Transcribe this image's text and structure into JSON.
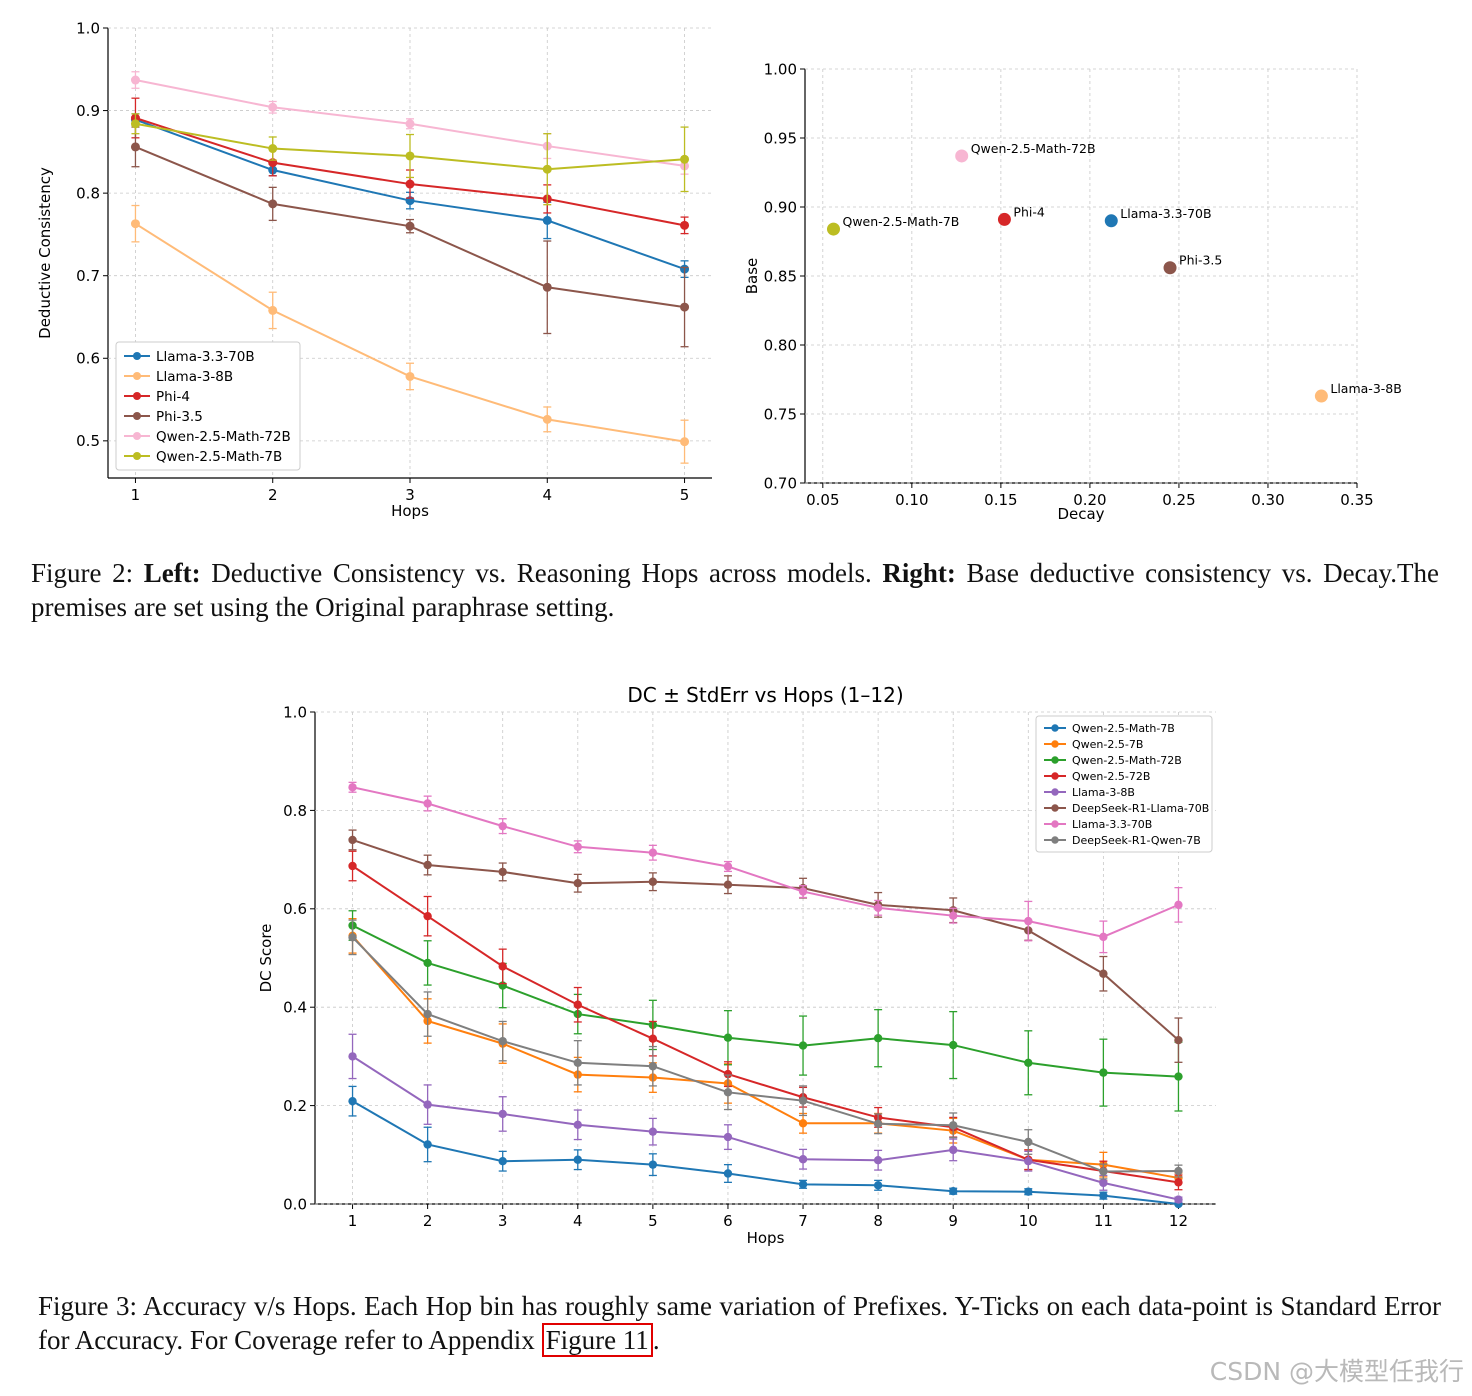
{
  "captions": {
    "fig2": {
      "prefix": "Figure 2: ",
      "left_label": "Left:",
      "left_text": " Deductive Consistency vs. Reasoning Hops across models. ",
      "right_label": "Right:",
      "right_text": " Base deductive consistency vs. Decay.The premises are set using the Original paraphrase setting."
    },
    "fig3": {
      "text": "Figure 3: Accuracy v/s Hops. Each Hop bin has roughly same variation of Prefixes. Y-Ticks on each data-point is Standard Error for Accuracy. For Coverage refer to Appendix ",
      "link": "Figure 11",
      "end": "."
    }
  },
  "watermark": "CSDN @大模型任我行",
  "chart_data": [
    {
      "type": "line",
      "title": "",
      "xlabel": "Hops",
      "ylabel": "Deductive Consistency",
      "x": [
        1,
        2,
        3,
        4,
        5
      ],
      "xlim": [
        0.8,
        5.2
      ],
      "ylim": [
        0.455,
        1.0
      ],
      "xticks": [
        "1",
        "2",
        "3",
        "4",
        "5"
      ],
      "yticks": [
        0.5,
        0.6,
        0.7,
        0.8,
        0.9,
        1.0
      ],
      "ytick_labels": [
        "0.5",
        "0.6",
        "0.7",
        "0.8",
        "0.9",
        "1.0"
      ],
      "grid": true,
      "legend": "bottom-left",
      "series": [
        {
          "name": "Llama-3.3-70B",
          "color": "#1f77b4",
          "values": [
            0.889,
            0.828,
            0.791,
            0.767,
            0.708
          ],
          "err": [
            0.007,
            0.007,
            0.01,
            0.022,
            0.01
          ]
        },
        {
          "name": "Llama-3-8B",
          "color": "#ffbb78",
          "values": [
            0.763,
            0.658,
            0.578,
            0.526,
            0.499
          ],
          "err": [
            0.022,
            0.022,
            0.016,
            0.015,
            0.026
          ]
        },
        {
          "name": "Phi-4",
          "color": "#d62728",
          "values": [
            0.891,
            0.837,
            0.811,
            0.793,
            0.761
          ],
          "err": [
            0.024,
            0.016,
            0.017,
            0.017,
            0.01
          ]
        },
        {
          "name": "Phi-3.5",
          "color": "#8c564b",
          "values": [
            0.856,
            0.787,
            0.76,
            0.686,
            0.662
          ],
          "err": [
            0.024,
            0.02,
            0.008,
            0.056,
            0.048
          ]
        },
        {
          "name": "Qwen-2.5-Math-72B",
          "color": "#f7b6d2",
          "values": [
            0.937,
            0.904,
            0.884,
            0.857,
            0.833
          ],
          "err": [
            0.01,
            0.007,
            0.006,
            0.015,
            0.01
          ]
        },
        {
          "name": "Qwen-2.5-Math-7B",
          "color": "#bcbd22",
          "values": [
            0.884,
            0.854,
            0.845,
            0.829,
            0.841
          ],
          "err": [
            0.012,
            0.014,
            0.026,
            0.043,
            0.039
          ]
        }
      ]
    },
    {
      "type": "scatter",
      "title": "",
      "xlabel": "Decay",
      "ylabel": "Base",
      "xlim": [
        0.04,
        0.35
      ],
      "ylim": [
        0.7,
        1.0
      ],
      "xticks": [
        0.05,
        0.1,
        0.15,
        0.2,
        0.25,
        0.3,
        0.35
      ],
      "xtick_labels": [
        "0.05",
        "0.10",
        "0.15",
        "0.20",
        "0.25",
        "0.30",
        "0.35"
      ],
      "yticks": [
        0.7,
        0.75,
        0.8,
        0.85,
        0.9,
        0.95,
        1.0
      ],
      "ytick_labels": [
        "0.70",
        "0.75",
        "0.80",
        "0.85",
        "0.90",
        "0.95",
        "1.00"
      ],
      "grid": true,
      "points": [
        {
          "label": "Qwen-2.5-Math-72B",
          "x": 0.128,
          "y": 0.937,
          "color": "#f7b6d2"
        },
        {
          "label": "Qwen-2.5-Math-7B",
          "x": 0.056,
          "y": 0.884,
          "color": "#bcbd22"
        },
        {
          "label": "Phi-4",
          "x": 0.152,
          "y": 0.891,
          "color": "#d62728"
        },
        {
          "label": "Llama-3.3-70B",
          "x": 0.212,
          "y": 0.89,
          "color": "#1f77b4"
        },
        {
          "label": "Phi-3.5",
          "x": 0.245,
          "y": 0.856,
          "color": "#8c564b"
        },
        {
          "label": "Llama-3-8B",
          "x": 0.33,
          "y": 0.763,
          "color": "#ffbb78"
        }
      ]
    },
    {
      "type": "line",
      "title": "DC ± StdErr vs Hops (1–12)",
      "xlabel": "Hops",
      "ylabel": "DC Score",
      "x": [
        1,
        2,
        3,
        4,
        5,
        6,
        7,
        8,
        9,
        10,
        11,
        12
      ],
      "xlim": [
        0.5,
        12.5
      ],
      "ylim": [
        0.0,
        1.0
      ],
      "xticks": [
        "1",
        "2",
        "3",
        "4",
        "5",
        "6",
        "7",
        "8",
        "9",
        "10",
        "11",
        "12"
      ],
      "yticks": [
        0.0,
        0.2,
        0.4,
        0.6,
        0.8,
        1.0
      ],
      "ytick_labels": [
        "0.0",
        "0.2",
        "0.4",
        "0.6",
        "0.8",
        "1.0"
      ],
      "grid": true,
      "legend": "top-right",
      "series": [
        {
          "name": "Qwen-2.5-Math-7B",
          "color": "#1f77b4",
          "values": [
            0.209,
            0.121,
            0.087,
            0.09,
            0.08,
            0.062,
            0.04,
            0.038,
            0.026,
            0.025,
            0.017,
            0.0
          ],
          "err": [
            0.03,
            0.035,
            0.02,
            0.02,
            0.022,
            0.018,
            0.008,
            0.01,
            0.006,
            0.006,
            0.007,
            0.002
          ]
        },
        {
          "name": "Qwen-2.5-7B",
          "color": "#ff7f0e",
          "values": [
            0.545,
            0.372,
            0.326,
            0.263,
            0.257,
            0.245,
            0.164,
            0.164,
            0.149,
            0.09,
            0.08,
            0.053
          ],
          "err": [
            0.035,
            0.045,
            0.04,
            0.035,
            0.03,
            0.04,
            0.02,
            0.02,
            0.025,
            0.02,
            0.025,
            0.01
          ]
        },
        {
          "name": "Qwen-2.5-Math-72B",
          "color": "#2ca02c",
          "values": [
            0.566,
            0.49,
            0.444,
            0.386,
            0.364,
            0.338,
            0.322,
            0.337,
            0.323,
            0.287,
            0.267,
            0.259
          ],
          "err": [
            0.03,
            0.045,
            0.045,
            0.04,
            0.05,
            0.055,
            0.06,
            0.058,
            0.068,
            0.065,
            0.068,
            0.07
          ]
        },
        {
          "name": "Qwen-2.5-72B",
          "color": "#d62728",
          "values": [
            0.687,
            0.585,
            0.483,
            0.405,
            0.336,
            0.264,
            0.217,
            0.176,
            0.156,
            0.09,
            0.067,
            0.044
          ],
          "err": [
            0.03,
            0.04,
            0.035,
            0.035,
            0.035,
            0.025,
            0.02,
            0.02,
            0.02,
            0.02,
            0.02,
            0.015
          ]
        },
        {
          "name": "Llama-3-8B",
          "color": "#9467bd",
          "values": [
            0.3,
            0.202,
            0.183,
            0.161,
            0.147,
            0.136,
            0.091,
            0.089,
            0.11,
            0.087,
            0.043,
            0.009
          ],
          "err": [
            0.045,
            0.04,
            0.035,
            0.03,
            0.027,
            0.025,
            0.02,
            0.02,
            0.022,
            0.02,
            0.015,
            0.005
          ]
        },
        {
          "name": "DeepSeek-R1-Llama-70B",
          "color": "#8c564b",
          "values": [
            0.74,
            0.689,
            0.675,
            0.652,
            0.655,
            0.649,
            0.642,
            0.608,
            0.597,
            0.556,
            0.468,
            0.333
          ],
          "err": [
            0.02,
            0.02,
            0.018,
            0.018,
            0.018,
            0.018,
            0.02,
            0.025,
            0.025,
            0.02,
            0.035,
            0.045
          ]
        },
        {
          "name": "Llama-3.3-70B",
          "color": "#e377c2",
          "values": [
            0.847,
            0.814,
            0.768,
            0.726,
            0.714,
            0.686,
            0.635,
            0.602,
            0.586,
            0.575,
            0.543,
            0.608
          ],
          "err": [
            0.01,
            0.015,
            0.015,
            0.012,
            0.015,
            0.01,
            0.012,
            0.015,
            0.015,
            0.04,
            0.032,
            0.035
          ]
        },
        {
          "name": "DeepSeek-R1-Qwen-7B",
          "color": "#7f7f7f",
          "values": [
            0.542,
            0.386,
            0.331,
            0.287,
            0.28,
            0.227,
            0.21,
            0.163,
            0.16,
            0.126,
            0.066,
            0.067
          ],
          "err": [
            0.035,
            0.045,
            0.04,
            0.045,
            0.04,
            0.035,
            0.03,
            0.02,
            0.025,
            0.025,
            0.015,
            0.012
          ]
        }
      ]
    }
  ]
}
